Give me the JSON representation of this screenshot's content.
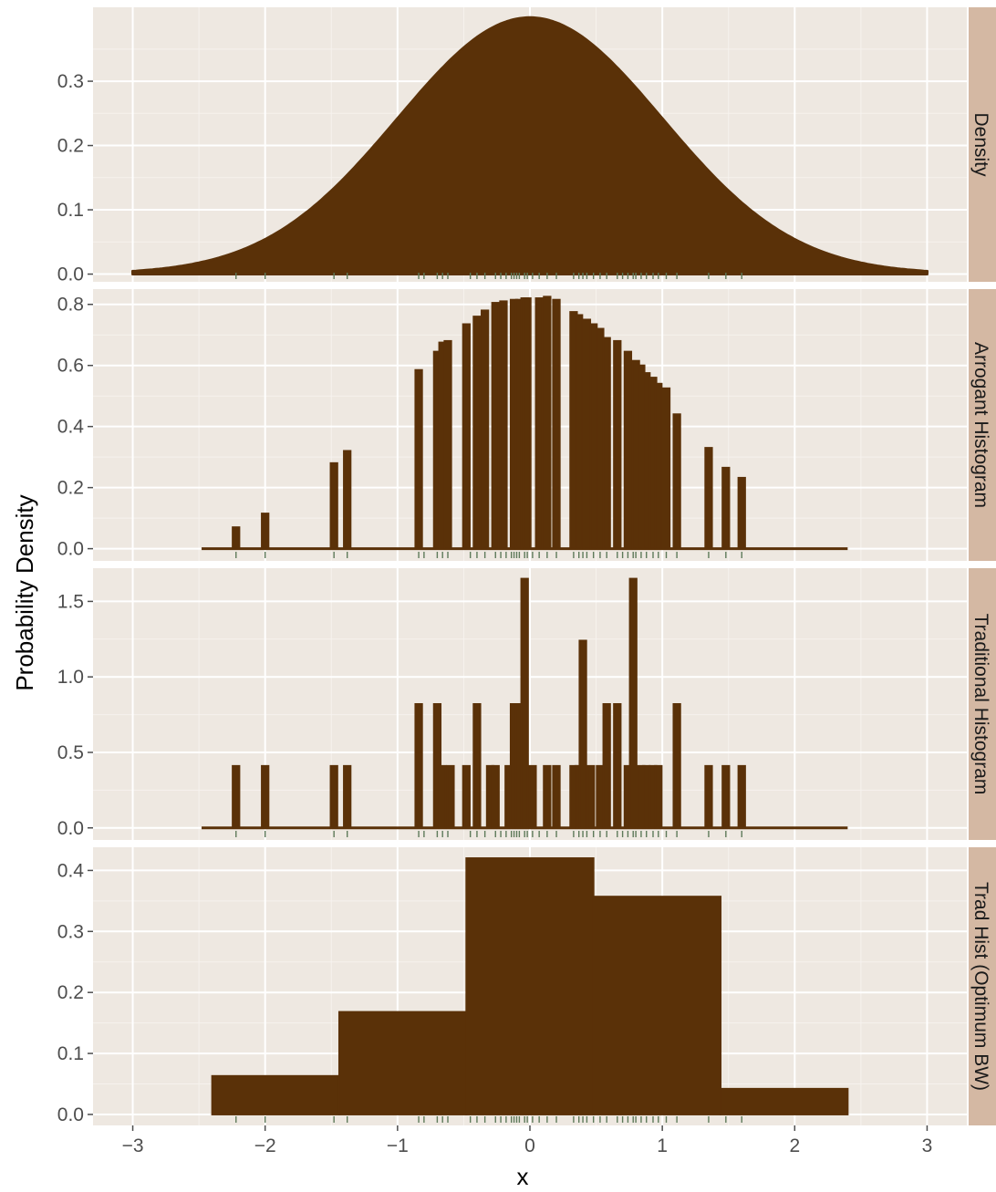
{
  "chart_data": {
    "type": "faceted-histogram",
    "xlabel": "x",
    "ylabel": "Probability Density",
    "xlim": [
      -3.3,
      3.3
    ],
    "x_ticks": [
      -3,
      -2,
      -1,
      0,
      1,
      2,
      3
    ],
    "x_tick_labels": [
      "−3",
      "−2",
      "−1",
      "0",
      "1",
      "2",
      "3"
    ],
    "rug": [
      -2.22,
      -2.0,
      -1.48,
      -1.38,
      -0.84,
      -0.8,
      -0.7,
      -0.66,
      -0.62,
      -0.45,
      -0.4,
      -0.34,
      -0.26,
      -0.22,
      -0.18,
      -0.14,
      -0.12,
      -0.1,
      -0.08,
      -0.04,
      -0.02,
      0.02,
      0.07,
      0.13,
      0.2,
      0.33,
      0.37,
      0.4,
      0.43,
      0.48,
      0.53,
      0.58,
      0.66,
      0.7,
      0.74,
      0.78,
      0.8,
      0.84,
      0.88,
      0.93,
      0.97,
      1.03,
      1.11,
      1.35,
      1.48,
      1.6
    ],
    "panels": [
      {
        "strip": "Density",
        "kind": "density",
        "ylim": [
          -0.012,
          0.415
        ],
        "y_ticks": [
          0.0,
          0.1,
          0.2,
          0.3
        ],
        "y_tick_labels": [
          "0.0",
          "0.1",
          "0.2",
          "0.3"
        ],
        "x_range": [
          -3,
          3
        ]
      },
      {
        "strip": "Arrogant Histogram",
        "kind": "bars",
        "ylim": [
          -0.04,
          0.85
        ],
        "y_ticks": [
          0.0,
          0.2,
          0.4,
          0.6,
          0.8
        ],
        "y_tick_labels": [
          "0.0",
          "0.2",
          "0.4",
          "0.6",
          "0.8"
        ],
        "baseline": [
          -2.48,
          2.4
        ],
        "bar_width": 0.05,
        "bars": [
          [
            -2.22,
            0.07
          ],
          [
            -2.0,
            0.115
          ],
          [
            -1.48,
            0.28
          ],
          [
            -1.38,
            0.32
          ],
          [
            -0.84,
            0.585
          ],
          [
            -0.7,
            0.645
          ],
          [
            -0.66,
            0.675
          ],
          [
            -0.62,
            0.68
          ],
          [
            -0.48,
            0.735
          ],
          [
            -0.4,
            0.76
          ],
          [
            -0.34,
            0.78
          ],
          [
            -0.26,
            0.805
          ],
          [
            -0.2,
            0.81
          ],
          [
            -0.12,
            0.815
          ],
          [
            -0.08,
            0.815
          ],
          [
            -0.04,
            0.82
          ],
          [
            -0.02,
            0.82
          ],
          [
            0.07,
            0.82
          ],
          [
            0.13,
            0.825
          ],
          [
            0.2,
            0.815
          ],
          [
            0.33,
            0.775
          ],
          [
            0.37,
            0.765
          ],
          [
            0.43,
            0.75
          ],
          [
            0.48,
            0.735
          ],
          [
            0.53,
            0.72
          ],
          [
            0.58,
            0.69
          ],
          [
            0.66,
            0.68
          ],
          [
            0.74,
            0.645
          ],
          [
            0.8,
            0.615
          ],
          [
            0.84,
            0.6
          ],
          [
            0.88,
            0.575
          ],
          [
            0.93,
            0.56
          ],
          [
            0.97,
            0.54
          ],
          [
            1.03,
            0.525
          ],
          [
            1.11,
            0.44
          ],
          [
            1.35,
            0.33
          ],
          [
            1.48,
            0.265
          ],
          [
            1.6,
            0.232
          ]
        ]
      },
      {
        "strip": "Traditional Histogram",
        "kind": "bars",
        "ylim": [
          -0.08,
          1.72
        ],
        "y_ticks": [
          0.0,
          0.5,
          1.0,
          1.5
        ],
        "y_tick_labels": [
          "0.0",
          "0.5",
          "1.0",
          "1.5"
        ],
        "baseline": [
          -2.48,
          2.4
        ],
        "bar_width": 0.05,
        "bars": [
          [
            -2.22,
            0.41
          ],
          [
            -2.0,
            0.41
          ],
          [
            -1.48,
            0.41
          ],
          [
            -1.38,
            0.41
          ],
          [
            -0.84,
            0.82
          ],
          [
            -0.7,
            0.82
          ],
          [
            -0.66,
            0.41
          ],
          [
            -0.6,
            0.41
          ],
          [
            -0.48,
            0.41
          ],
          [
            -0.4,
            0.82
          ],
          [
            -0.3,
            0.41
          ],
          [
            -0.26,
            0.41
          ],
          [
            -0.16,
            0.41
          ],
          [
            -0.12,
            0.82
          ],
          [
            -0.08,
            0.82
          ],
          [
            -0.04,
            1.65
          ],
          [
            0.02,
            0.41
          ],
          [
            0.13,
            0.41
          ],
          [
            0.2,
            0.41
          ],
          [
            0.33,
            0.41
          ],
          [
            0.37,
            0.41
          ],
          [
            0.4,
            1.24
          ],
          [
            0.46,
            0.41
          ],
          [
            0.53,
            0.41
          ],
          [
            0.58,
            0.82
          ],
          [
            0.66,
            0.82
          ],
          [
            0.74,
            0.41
          ],
          [
            0.78,
            1.65
          ],
          [
            0.84,
            0.41
          ],
          [
            0.88,
            0.41
          ],
          [
            0.93,
            0.41
          ],
          [
            0.97,
            0.41
          ],
          [
            1.11,
            0.82
          ],
          [
            1.35,
            0.41
          ],
          [
            1.48,
            0.41
          ],
          [
            1.6,
            0.41
          ]
        ]
      },
      {
        "strip": "Trad Hist (Optimum BW)",
        "kind": "steps",
        "ylim": [
          -0.018,
          0.438
        ],
        "y_ticks": [
          0.0,
          0.1,
          0.2,
          0.3,
          0.4
        ],
        "y_tick_labels": [
          "0.0",
          "0.1",
          "0.2",
          "0.3",
          "0.4"
        ],
        "bins": [
          [
            -2.4,
            -1.44,
            0.063
          ],
          [
            -1.44,
            -0.48,
            0.168
          ],
          [
            -0.48,
            0.48,
            0.42
          ],
          [
            0.48,
            1.44,
            0.357
          ],
          [
            1.44,
            2.4,
            0.042
          ]
        ]
      }
    ],
    "colors": {
      "fill": "#5a3108",
      "panel_bg": "#eee8e1",
      "grid_major": "#ffffff",
      "grid_minor": "#f6f2ee",
      "strip_bg": "#d4b8a3",
      "rug": "#5e7a5a",
      "tick": "#4d4d4d"
    },
    "grid": true,
    "legend": "none"
  }
}
